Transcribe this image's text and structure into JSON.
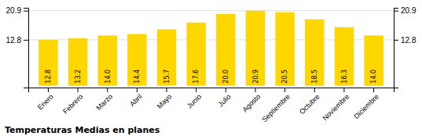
{
  "chart_data": {
    "type": "bar",
    "title": "Temperaturas Medias en planes",
    "categories": [
      "Enero",
      "Febrero",
      "Marzo",
      "Abril",
      "Mayo",
      "Junio",
      "Julio",
      "Agosto",
      "Septiembre",
      "Octubre",
      "Noviembre",
      "Diciembre"
    ],
    "values": [
      12.8,
      13.2,
      14.0,
      14.4,
      15.7,
      17.6,
      20.0,
      20.9,
      20.5,
      18.5,
      16.3,
      14.0
    ],
    "value_labels": [
      "12.8",
      "13.2",
      "14.0",
      "14.4",
      "15.7",
      "17.6",
      "20.0",
      "20.9",
      "20.5",
      "18.5",
      "16.3",
      "14.0"
    ],
    "color": "#FFD700",
    "ylim": [
      -0.5,
      21.7
    ],
    "yticks": [
      12.8,
      20.9
    ],
    "grid": true,
    "data_labels": true
  }
}
